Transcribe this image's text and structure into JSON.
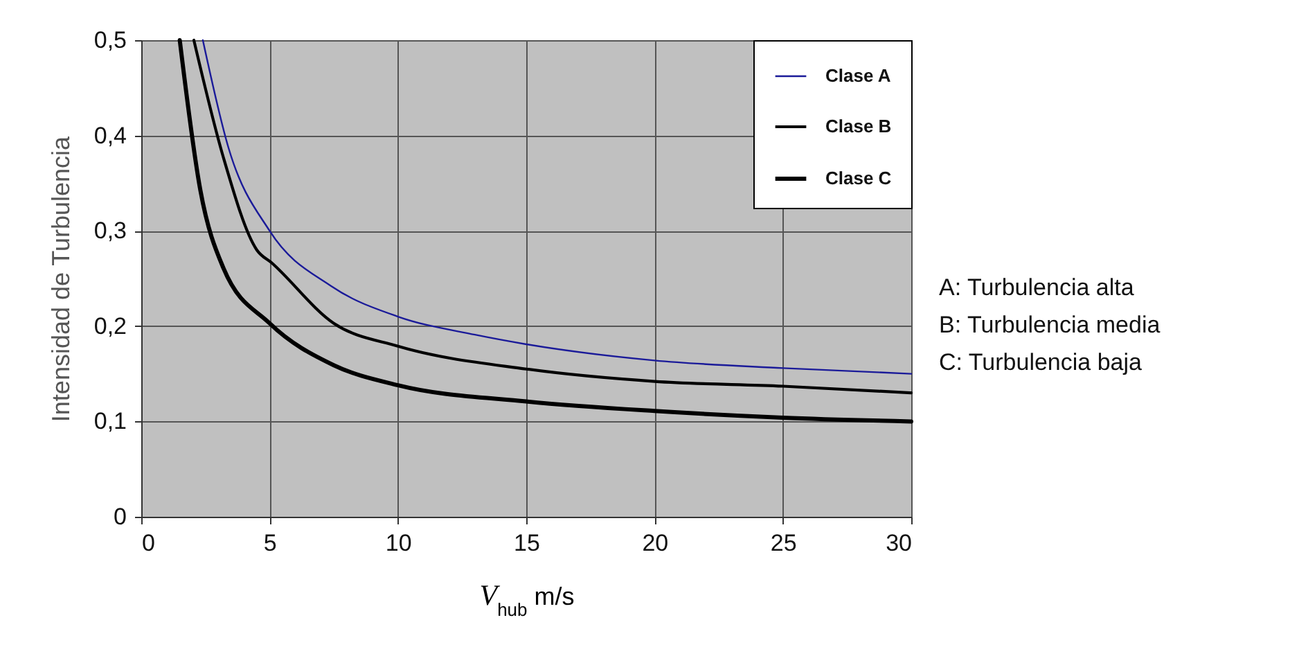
{
  "chart_data": {
    "type": "line",
    "xlabel": "V$_{hub}$  m/s",
    "ylabel": "Intensidad de Turbulencia",
    "xlim": [
      0,
      30
    ],
    "xticks": [
      0,
      5,
      10,
      15,
      20,
      25,
      30
    ],
    "ylim": [
      0,
      0.5
    ],
    "yticks": [
      0,
      {
        "value": 0.1,
        "label": "0,1"
      },
      {
        "value": 0.2,
        "label": "0,2"
      },
      {
        "value": 0.3,
        "label": "0,3"
      },
      {
        "value": 0.4,
        "label": "0,4"
      },
      {
        "value": 0.5,
        "label": "0,5"
      }
    ],
    "grid": true,
    "legend": "top right",
    "series": [
      {
        "name": "Clase A",
        "color": "#1a1a99",
        "x": [
          2.4,
          3.4,
          5,
          7.4,
          10,
          13,
          15,
          20,
          25,
          30
        ],
        "values": [
          0.5,
          0.387,
          0.3,
          0.242,
          0.21,
          0.191,
          0.181,
          0.164,
          0.156,
          0.15
        ]
      },
      {
        "name": "Clase B",
        "color": "#000000",
        "x": [
          2.05,
          3.2,
          4.5,
          5.1,
          7.5,
          10,
          15,
          20,
          25,
          30
        ],
        "values": [
          0.5,
          0.377,
          0.28,
          0.266,
          0.203,
          0.179,
          0.155,
          0.142,
          0.137,
          0.13
        ]
      },
      {
        "name": "Clase C",
        "color": "#000000",
        "x": [
          1.5,
          2.3,
          3.2,
          5,
          7.5,
          10,
          15,
          20,
          25,
          30
        ],
        "values": [
          0.5,
          0.343,
          0.261,
          0.203,
          0.159,
          0.138,
          0.121,
          0.111,
          0.104,
          0.1
        ]
      }
    ],
    "annotations": [
      "A: Turbulencia alta",
      "B: Turbulencia media",
      "C: Turbulencia baja"
    ]
  }
}
